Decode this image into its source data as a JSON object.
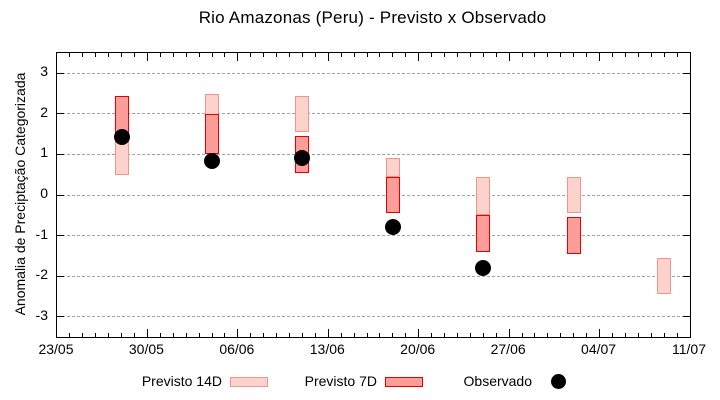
{
  "title": "Rio Amazonas (Peru) - Previsto x Observado",
  "y_axis": {
    "label": "Anomalia de Preciptação Categorizada",
    "tick_values": [
      3,
      2,
      1,
      0,
      -1,
      -2,
      -3
    ]
  },
  "x_axis": {
    "tick_labels": [
      "23/05",
      "30/05",
      "06/06",
      "13/06",
      "20/06",
      "27/06",
      "04/07",
      "11/07"
    ],
    "days_per_major_tick": 7,
    "total_days": 49
  },
  "legend": [
    {
      "label": "Previsto 14D",
      "type": "box"
    },
    {
      "label": "Previsto 7D",
      "type": "box"
    },
    {
      "label": "Observado",
      "type": "dot"
    }
  ],
  "colors": {
    "p14_fill": "#FBD3CC",
    "p14_border": "#F2968C",
    "p7_fill": "#FB9D99",
    "p7_border": "#E80000",
    "observed": "#000000",
    "grid": "#A3A3A3"
  },
  "chart_data": {
    "type": "bar",
    "subtype": "ranged-bars-with-scatter",
    "title": "Rio Amazonas (Peru) - Previsto x Observado",
    "xlabel": "",
    "ylabel": "Anomalia de Preciptação Categorizada",
    "ylim": [
      -3.5,
      3.5
    ],
    "grid": true,
    "legend_position": "bottom",
    "x_dates": [
      "28/05",
      "04/06",
      "11/06",
      "18/06",
      "25/06",
      "02/07",
      "09/07"
    ],
    "x_day_offsets": [
      5,
      12,
      19,
      26,
      33,
      40,
      47
    ],
    "series": [
      {
        "name": "Previsto 14D",
        "type": "range-bar",
        "ranges": [
          [
            0.5,
            1.45
          ],
          [
            1.5,
            2.5
          ],
          [
            1.55,
            2.45
          ],
          [
            0.45,
            0.9
          ],
          [
            -0.5,
            0.45
          ],
          [
            -0.45,
            0.45
          ],
          [
            -2.45,
            -1.55
          ]
        ]
      },
      {
        "name": "Previsto 7D",
        "type": "range-bar",
        "ranges": [
          [
            1.45,
            2.45
          ],
          [
            1.0,
            2.0
          ],
          [
            0.55,
            1.45
          ],
          [
            -0.45,
            0.45
          ],
          [
            -1.4,
            -0.5
          ],
          [
            -1.45,
            -0.55
          ],
          null
        ]
      },
      {
        "name": "Observado",
        "type": "scatter",
        "values": [
          1.42,
          0.85,
          0.9,
          -0.8,
          -1.8,
          null,
          null
        ]
      }
    ]
  }
}
